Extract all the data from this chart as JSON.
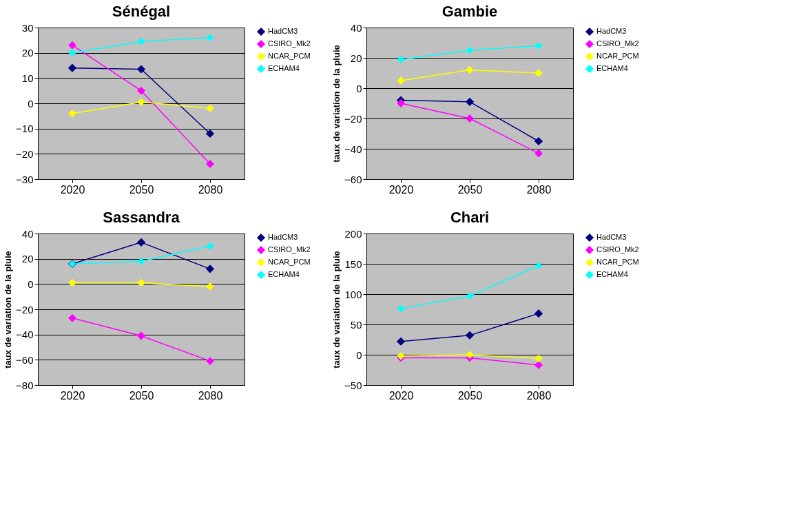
{
  "chart_data": [
    {
      "type": "line",
      "title": "Sénégal",
      "categories": [
        "2020",
        "2050",
        "2080"
      ],
      "ylim": [
        -30,
        30
      ],
      "yticks": [
        -30,
        -20,
        -10,
        0,
        10,
        20,
        30
      ],
      "grid": "y",
      "legend": "top right",
      "marker": "diamond",
      "series": [
        {
          "name": "HadCM3",
          "color": "#000080",
          "values": [
            14,
            13.5,
            -12
          ]
        },
        {
          "name": "CSIRO_Mk2",
          "color": "#ff00ff",
          "values": [
            23,
            5,
            -24
          ]
        },
        {
          "name": "NCAR_PCM",
          "color": "#ffff00",
          "values": [
            -4,
            0.5,
            -2
          ]
        },
        {
          "name": "ECHAM4",
          "color": "#00ffff",
          "values": [
            20,
            24.5,
            26
          ]
        }
      ]
    },
    {
      "type": "line",
      "title": "Gambie",
      "ylabel": "taux de variation de la pluie",
      "categories": [
        "2020",
        "2050",
        "2080"
      ],
      "ylim": [
        -60,
        40
      ],
      "yticks": [
        -60,
        -40,
        -20,
        0,
        20,
        40
      ],
      "grid": "y",
      "legend": "top right",
      "marker": "diamond",
      "series": [
        {
          "name": "HadCM3",
          "color": "#000080",
          "values": [
            -8,
            -9,
            -35
          ]
        },
        {
          "name": "CSIRO_Mk2",
          "color": "#ff00ff",
          "values": [
            -10,
            -20,
            -43
          ]
        },
        {
          "name": "NCAR_PCM",
          "color": "#ffff00",
          "values": [
            5,
            12,
            10
          ]
        },
        {
          "name": "ECHAM4",
          "color": "#00ffff",
          "values": [
            19,
            25,
            28
          ]
        }
      ]
    },
    {
      "type": "line",
      "title": "Sassandra",
      "ylabel": "taux de variation de la pluie",
      "categories": [
        "2020",
        "2050",
        "2080"
      ],
      "ylim": [
        -80,
        40
      ],
      "yticks": [
        -80,
        -60,
        -40,
        -20,
        0,
        20,
        40
      ],
      "grid": "y",
      "legend": "top right",
      "marker": "diamond",
      "series": [
        {
          "name": "HadCM3",
          "color": "#000080",
          "values": [
            16,
            33,
            12
          ]
        },
        {
          "name": "CSIRO_Mk2",
          "color": "#ff00ff",
          "values": [
            -27,
            -41,
            -61
          ]
        },
        {
          "name": "NCAR_PCM",
          "color": "#ffff00",
          "values": [
            1,
            1,
            -2
          ]
        },
        {
          "name": "ECHAM4",
          "color": "#00ffff",
          "values": [
            16,
            18,
            30
          ]
        }
      ]
    },
    {
      "type": "line",
      "title": "Chari",
      "ylabel": "taux de variation de la pluie",
      "categories": [
        "2020",
        "2050",
        "2080"
      ],
      "ylim": [
        -50,
        200
      ],
      "yticks": [
        -50,
        0,
        50,
        100,
        150,
        200
      ],
      "grid": "y",
      "legend": "top right",
      "marker": "diamond",
      "series": [
        {
          "name": "HadCM3",
          "color": "#000080",
          "values": [
            22,
            32,
            68
          ]
        },
        {
          "name": "CSIRO_Mk2",
          "color": "#ff00ff",
          "values": [
            -5,
            -5,
            -17
          ]
        },
        {
          "name": "NCAR_PCM",
          "color": "#ffff00",
          "values": [
            -2,
            0,
            -6
          ]
        },
        {
          "name": "ECHAM4",
          "color": "#00ffff",
          "values": [
            76,
            97,
            147
          ]
        }
      ]
    }
  ]
}
